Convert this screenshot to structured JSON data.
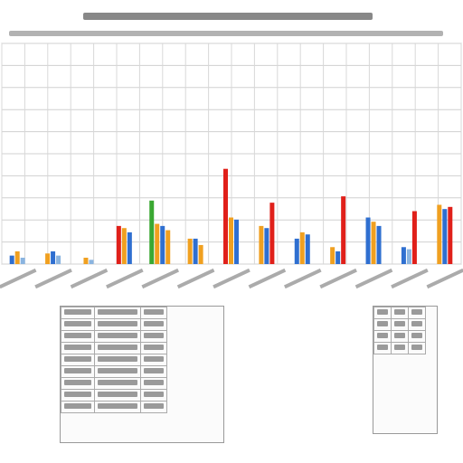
{
  "chart_data": {
    "type": "bar",
    "title": "",
    "xlabel": "",
    "ylabel": "",
    "grid": true,
    "legend": "none",
    "ylim": [
      0,
      100
    ],
    "series_colors": [
      "#2f6fd0",
      "#f0a020",
      "#e0201a",
      "#8ab4e0",
      "#3aa832"
    ],
    "groups": [
      {
        "bars": [
          {
            "c": "#2f6fd0",
            "v": 4
          },
          {
            "c": "#f0a020",
            "v": 6
          },
          {
            "c": "#8ab4e0",
            "v": 3
          }
        ]
      },
      {
        "bars": [
          {
            "c": "#f0a020",
            "v": 5
          },
          {
            "c": "#2f6fd0",
            "v": 6
          },
          {
            "c": "#8ab4e0",
            "v": 4
          }
        ]
      },
      {
        "bars": [
          {
            "c": "#f0a020",
            "v": 3
          },
          {
            "c": "#8ab4e0",
            "v": 2
          }
        ]
      },
      {
        "bars": [
          {
            "c": "#e0201a",
            "v": 18
          },
          {
            "c": "#f0a020",
            "v": 17
          },
          {
            "c": "#2f6fd0",
            "v": 15
          }
        ]
      },
      {
        "bars": [
          {
            "c": "#3aa832",
            "v": 30
          },
          {
            "c": "#f0a020",
            "v": 19
          },
          {
            "c": "#2f6fd0",
            "v": 18
          },
          {
            "c": "#f0a020",
            "v": 16
          }
        ]
      },
      {
        "bars": [
          {
            "c": "#f0a020",
            "v": 12
          },
          {
            "c": "#2f6fd0",
            "v": 12
          },
          {
            "c": "#f0a020",
            "v": 9
          }
        ]
      },
      {
        "bars": [
          {
            "c": "#e0201a",
            "v": 45
          },
          {
            "c": "#f0a020",
            "v": 22
          },
          {
            "c": "#2f6fd0",
            "v": 21
          }
        ]
      },
      {
        "bars": [
          {
            "c": "#f0a020",
            "v": 18
          },
          {
            "c": "#2f6fd0",
            "v": 17
          },
          {
            "c": "#e0201a",
            "v": 29
          }
        ]
      },
      {
        "bars": [
          {
            "c": "#2f6fd0",
            "v": 12
          },
          {
            "c": "#f0a020",
            "v": 15
          },
          {
            "c": "#2f6fd0",
            "v": 14
          }
        ]
      },
      {
        "bars": [
          {
            "c": "#f0a020",
            "v": 8
          },
          {
            "c": "#2f6fd0",
            "v": 6
          },
          {
            "c": "#e0201a",
            "v": 32
          }
        ]
      },
      {
        "bars": [
          {
            "c": "#2f6fd0",
            "v": 22
          },
          {
            "c": "#f0a020",
            "v": 20
          },
          {
            "c": "#2f6fd0",
            "v": 18
          }
        ]
      },
      {
        "bars": [
          {
            "c": "#2f6fd0",
            "v": 8
          },
          {
            "c": "#8ab4e0",
            "v": 7
          },
          {
            "c": "#e0201a",
            "v": 25
          }
        ]
      },
      {
        "bars": [
          {
            "c": "#f0a020",
            "v": 28
          },
          {
            "c": "#2f6fd0",
            "v": 26
          },
          {
            "c": "#e0201a",
            "v": 27
          }
        ]
      }
    ]
  },
  "tables": {
    "left": {
      "rows": 9,
      "cols": 3
    },
    "right": {
      "rows": 4,
      "cols": 3
    }
  }
}
